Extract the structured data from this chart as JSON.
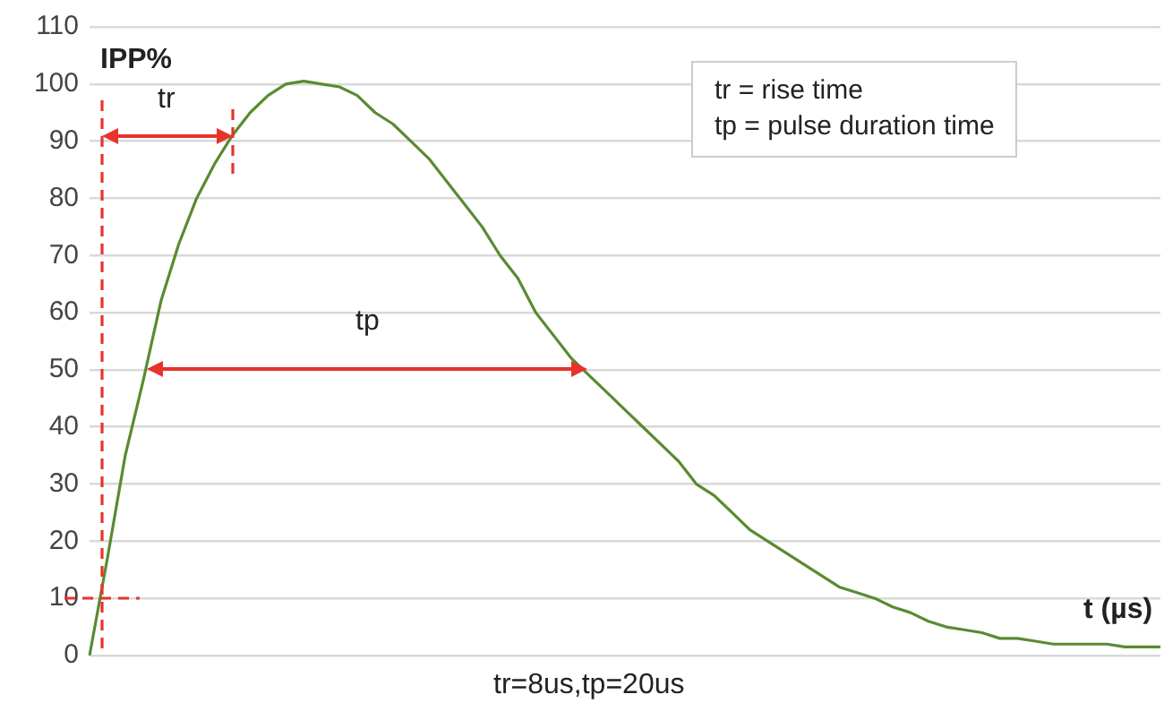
{
  "chart_data": {
    "type": "line",
    "ylabel": "IPP%",
    "xlabel": "t (µs)",
    "categories": [
      null,
      null,
      null,
      null,
      null,
      null,
      null,
      null,
      null,
      null,
      null,
      null,
      null,
      null,
      null,
      null,
      null,
      null,
      null,
      null,
      null,
      null,
      null,
      null,
      null,
      null,
      null,
      null,
      null,
      null,
      null,
      null,
      null,
      null,
      null,
      null,
      null,
      null,
      null,
      null,
      null,
      null,
      null,
      null,
      null,
      null,
      null,
      null,
      null,
      null,
      null,
      null,
      null,
      null,
      null,
      null,
      null,
      null,
      null,
      null,
      null
    ],
    "series": [
      {
        "color": "#5b8a32",
        "values": [
          0,
          17,
          35,
          48,
          62,
          72,
          80,
          86,
          91,
          95,
          98,
          100,
          100.5,
          100,
          99.5,
          98,
          95,
          93,
          90,
          87,
          83,
          79,
          75,
          70,
          66,
          60,
          56,
          52,
          49,
          46,
          43,
          40,
          37,
          34,
          30,
          28,
          25,
          22,
          20,
          18,
          16,
          14,
          12,
          11,
          10,
          8.5,
          7.5,
          6,
          5,
          4.5,
          4,
          3,
          3,
          2.5,
          2,
          2,
          2,
          2,
          1.5,
          1.5,
          1.5
        ]
      }
    ],
    "ylim": [
      0,
      110
    ],
    "yticks": [
      0,
      10,
      20,
      30,
      40,
      50,
      60,
      70,
      80,
      90,
      100,
      110
    ],
    "grid": "y",
    "tick_labels": "y",
    "legend": false,
    "marker": "none",
    "line_style": "solid",
    "annotations": [
      "tr",
      "tp",
      "tr = rise time",
      "tp = pulse duration time",
      "tr=8us,tp=20us"
    ]
  }
}
